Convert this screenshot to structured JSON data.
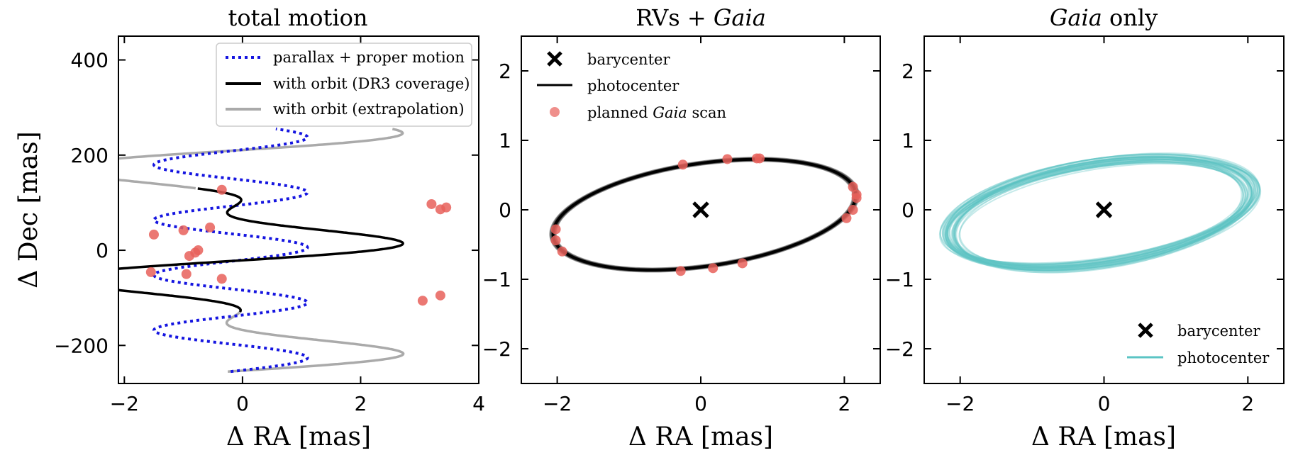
{
  "chart_data": [
    {
      "type": "line",
      "title": "total motion",
      "xlabel": "Δ RA [mas]",
      "ylabel": "Δ Dec [mas]",
      "xlim": [
        -2.1,
        4.0
      ],
      "ylim": [
        -280,
        450
      ],
      "xticks": [
        -2,
        0,
        2,
        4
      ],
      "yticks": [
        -200,
        0,
        200,
        400
      ],
      "grid": false,
      "legend_placement": "top-right",
      "legend": [
        {
          "label": "parallax + proper motion",
          "style": "dotted",
          "color": "#1515e0"
        },
        {
          "label": "with orbit (DR3 coverage)",
          "style": "solid",
          "color": "#000000"
        },
        {
          "label": "with orbit (extrapolation)",
          "style": "solid",
          "color": "#aaaaaa"
        }
      ],
      "series_model": {
        "parallax_amplitude_ra": 1.3,
        "ra_offset": -0.2,
        "dec_range": [
          -255,
          255
        ],
        "oscillations": 4.4,
        "orbit_amplitude_ra": 2.1,
        "orbit_period_dec_span": 232,
        "dr3_dec_range": [
          -130,
          130
        ]
      },
      "scan_points": [
        {
          "ra": -0.35,
          "dec": 127
        },
        {
          "ra": 3.2,
          "dec": 97
        },
        {
          "ra": 3.35,
          "dec": 86
        },
        {
          "ra": 3.45,
          "dec": 90
        },
        {
          "ra": -1.0,
          "dec": 42
        },
        {
          "ra": -0.55,
          "dec": 48
        },
        {
          "ra": -1.5,
          "dec": 33
        },
        {
          "ra": -0.75,
          "dec": 0
        },
        {
          "ra": -0.8,
          "dec": -5
        },
        {
          "ra": -0.9,
          "dec": -12
        },
        {
          "ra": -1.55,
          "dec": -46
        },
        {
          "ra": -0.95,
          "dec": -50
        },
        {
          "ra": -0.35,
          "dec": -60
        },
        {
          "ra": 3.35,
          "dec": -95
        },
        {
          "ra": 3.05,
          "dec": -106
        }
      ]
    },
    {
      "type": "line",
      "title": "RVs + Gaia",
      "xlabel": "Δ RA [mas]",
      "ylabel": "",
      "xlim": [
        -2.5,
        2.5
      ],
      "ylim": [
        -2.5,
        2.5
      ],
      "xticks": [
        -2,
        0,
        2
      ],
      "yticks": [
        -2,
        -1,
        0,
        1,
        2
      ],
      "grid": false,
      "legend_placement": "top-left",
      "legend": [
        {
          "label": "barycenter",
          "marker": "x",
          "color": "#000000"
        },
        {
          "label": "photocenter",
          "style": "solid",
          "color": "#000000"
        },
        {
          "label": "planned Gaia scan",
          "marker": "circle",
          "color": "#e8605a"
        }
      ],
      "barycenter": [
        0,
        0
      ],
      "ellipse": {
        "center": [
          0.05,
          -0.07
        ],
        "a": 2.13,
        "b": 0.74,
        "tilt_deg": 8.5
      },
      "scan_points": [
        {
          "ra": -0.25,
          "dec": 0.65
        },
        {
          "ra": 0.37,
          "dec": 0.73
        },
        {
          "ra": 0.78,
          "dec": 0.74
        },
        {
          "ra": 0.82,
          "dec": 0.74
        },
        {
          "ra": 2.12,
          "dec": 0.33
        },
        {
          "ra": 2.17,
          "dec": 0.22
        },
        {
          "ra": 2.17,
          "dec": 0.17
        },
        {
          "ra": 2.12,
          "dec": 0.0
        },
        {
          "ra": 2.03,
          "dec": -0.12
        },
        {
          "ra": -2.02,
          "dec": -0.28
        },
        {
          "ra": -2.02,
          "dec": -0.44
        },
        {
          "ra": -1.93,
          "dec": -0.6
        },
        {
          "ra": -0.28,
          "dec": -0.88
        },
        {
          "ra": 0.17,
          "dec": -0.84
        },
        {
          "ra": 0.58,
          "dec": -0.77
        }
      ]
    },
    {
      "type": "line",
      "title": "Gaia only",
      "xlabel": "Δ RA [mas]",
      "ylabel": "",
      "xlim": [
        -2.5,
        2.5
      ],
      "ylim": [
        -2.5,
        2.5
      ],
      "xticks": [
        -2,
        0,
        2
      ],
      "yticks": [
        -2,
        -1,
        0,
        1,
        2
      ],
      "grid": false,
      "legend_placement": "bottom-right",
      "legend": [
        {
          "label": "barycenter",
          "marker": "x",
          "color": "#000000"
        },
        {
          "label": "photocenter",
          "style": "solid",
          "color": "#5bc4c4"
        }
      ],
      "barycenter": [
        0,
        0
      ],
      "ellipse": {
        "center": [
          -0.05,
          -0.05
        ],
        "a": 2.12,
        "b": 0.72,
        "tilt_deg": 8.5,
        "spread": 0.12
      }
    }
  ],
  "colors": {
    "dotted": "#1515e0",
    "orbit": "#000000",
    "extrap": "#aaaaaa",
    "scan": "#e8605a",
    "teal": "#5bc4c4"
  }
}
